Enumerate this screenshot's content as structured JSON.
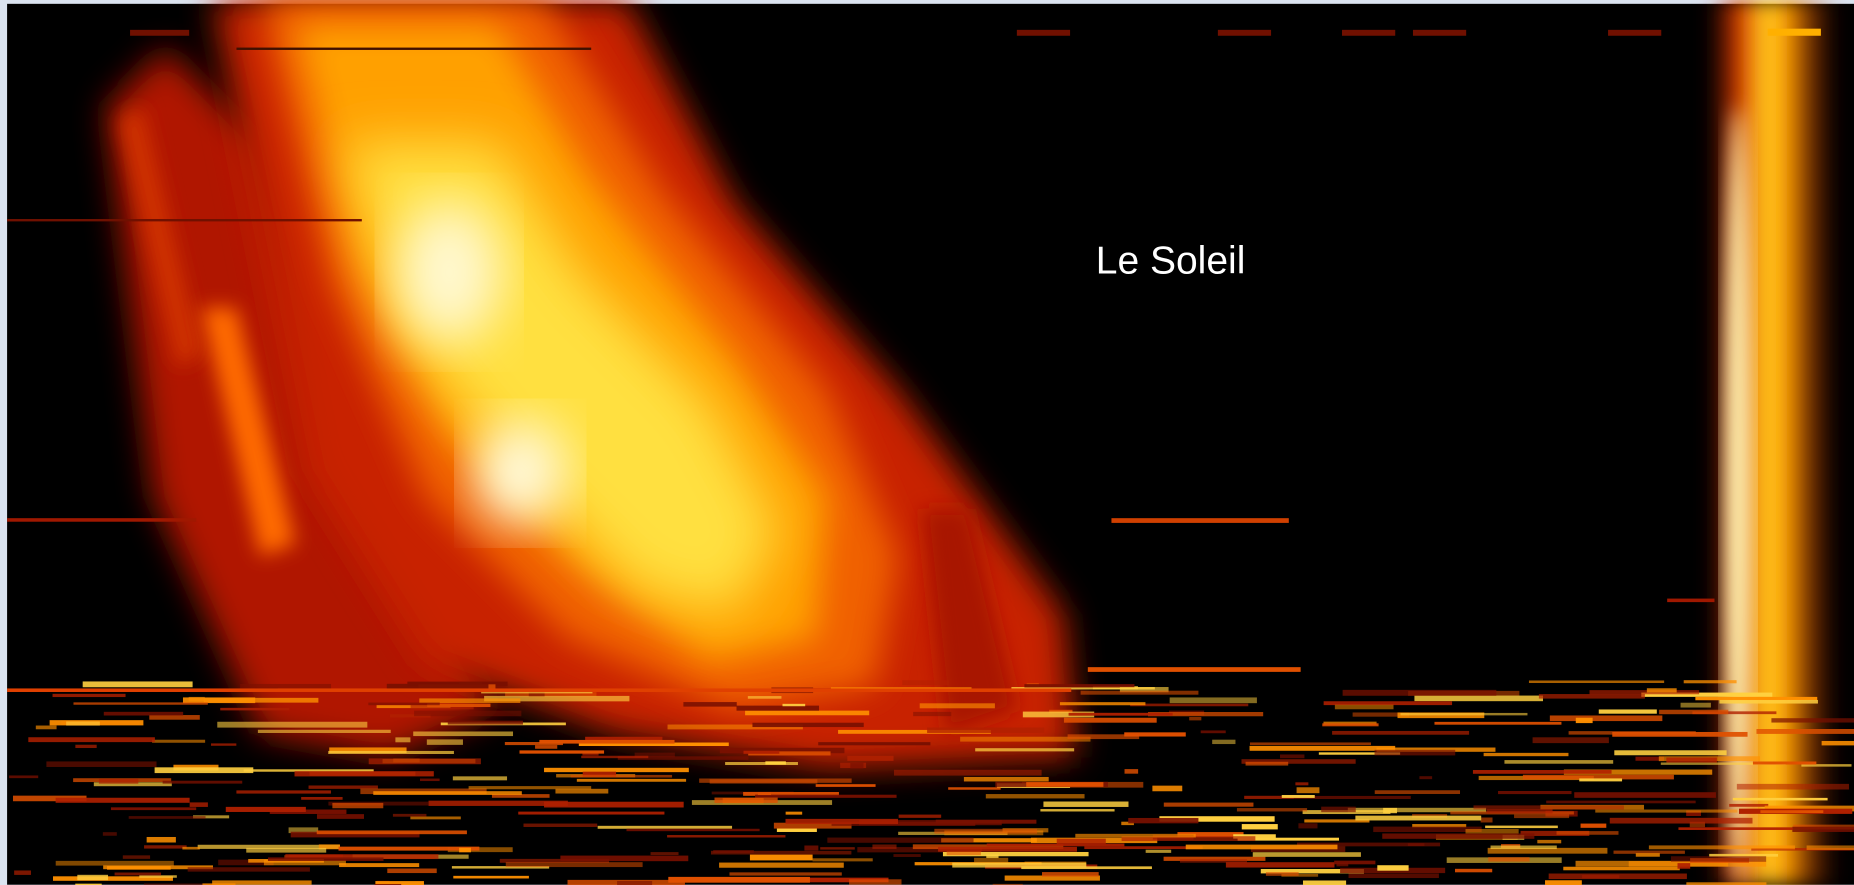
{
  "image": {
    "label": "Le Soleil"
  }
}
